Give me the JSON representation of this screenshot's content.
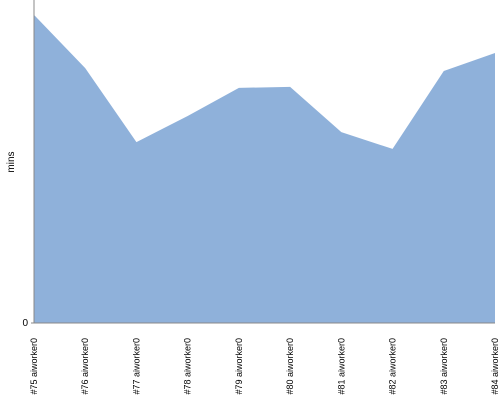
{
  "chart_data": {
    "type": "area",
    "y_label": "mins",
    "categories": [
      "#75 aiworker0",
      "#76 aiworker0",
      "#77 aiworker0",
      "#78 aiworker0",
      "#79 aiworker0",
      "#80 aiworker0",
      "#81 aiworker0",
      "#82 aiworker0",
      "#83 aiworker0",
      "#84 aiworker0"
    ],
    "values": [
      95.4,
      78.9,
      56.0,
      64.1,
      72.8,
      73.1,
      59.1,
      53.9,
      78.0,
      83.6
    ],
    "color": "#8fb1da",
    "ylim": [
      0,
      100
    ],
    "yticks": [
      0
    ]
  }
}
